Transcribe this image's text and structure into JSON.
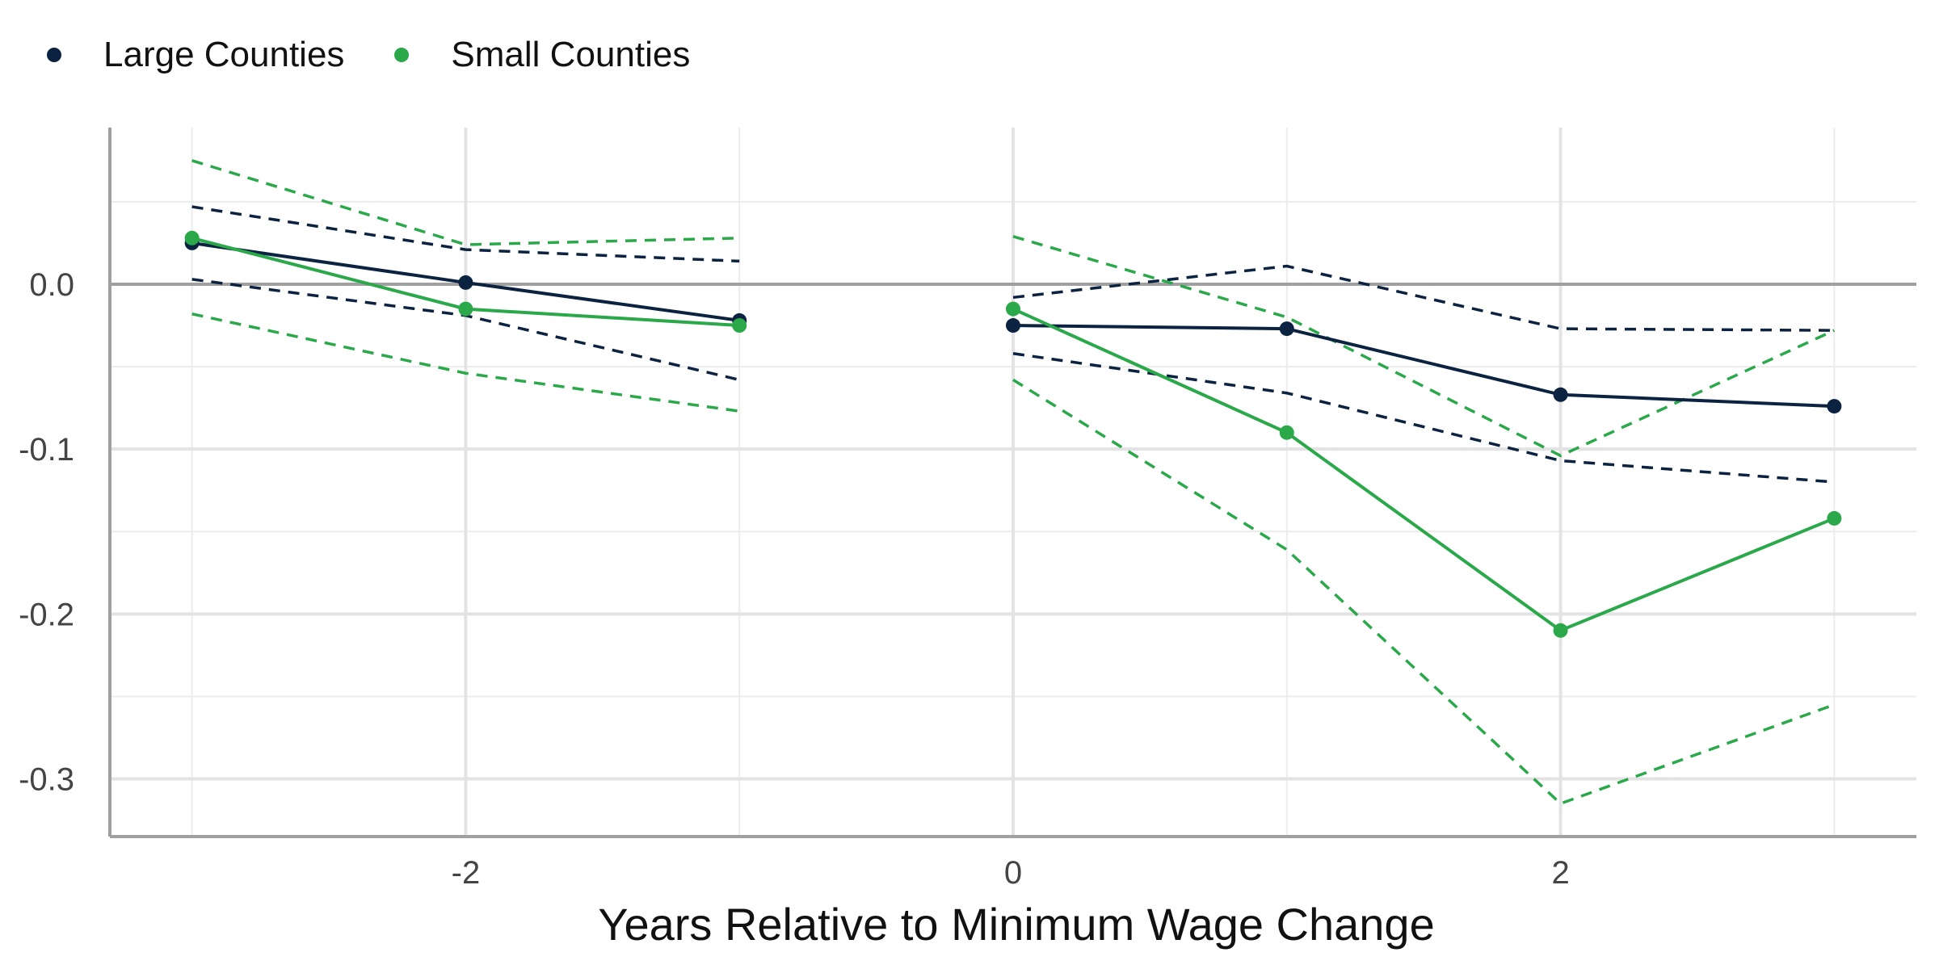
{
  "legend": {
    "items": [
      {
        "label": "Large Counties",
        "color": "#0b2240"
      },
      {
        "label": "Small Counties",
        "color": "#2aa84a"
      }
    ]
  },
  "chart_data": {
    "type": "line",
    "title": "",
    "xlabel": "Years Relative to Minimum Wage Change",
    "ylabel": "",
    "xlim": [
      -3.3,
      3.3
    ],
    "ylim": [
      -0.335,
      0.095
    ],
    "x_ticks": [
      -2,
      0,
      2
    ],
    "x_tick_labels": [
      "-2",
      "0",
      "2"
    ],
    "y_ticks": [
      0.0,
      -0.1,
      -0.2,
      -0.3
    ],
    "y_tick_labels": [
      "0.0",
      "-0.1",
      "-0.2",
      "-0.3"
    ],
    "grid": true,
    "reference_line_y": 0,
    "legend_position": "top-left",
    "series": [
      {
        "name": "Large Counties",
        "color": "#0b2240",
        "segments": [
          {
            "x": [
              -3,
              -2,
              -1
            ],
            "y": [
              0.025,
              0.001,
              -0.022
            ],
            "ci_upper": [
              0.047,
              0.021,
              0.014
            ],
            "ci_lower": [
              0.003,
              -0.019,
              -0.058
            ]
          },
          {
            "x": [
              0,
              1,
              2,
              3
            ],
            "y": [
              -0.025,
              -0.027,
              -0.067,
              -0.074
            ],
            "ci_upper": [
              -0.008,
              0.011,
              -0.027,
              -0.028
            ],
            "ci_lower": [
              -0.042,
              -0.066,
              -0.107,
              -0.12
            ]
          }
        ]
      },
      {
        "name": "Small Counties",
        "color": "#2aa84a",
        "segments": [
          {
            "x": [
              -3,
              -2,
              -1
            ],
            "y": [
              0.028,
              -0.015,
              -0.025
            ],
            "ci_upper": [
              0.075,
              0.024,
              0.028
            ],
            "ci_lower": [
              -0.018,
              -0.054,
              -0.077
            ]
          },
          {
            "x": [
              0,
              1,
              2,
              3
            ],
            "y": [
              -0.015,
              -0.09,
              -0.21,
              -0.142
            ],
            "ci_upper": [
              0.029,
              -0.02,
              -0.104,
              -0.028
            ],
            "ci_lower": [
              -0.058,
              -0.161,
              -0.315,
              -0.255
            ]
          }
        ]
      }
    ]
  }
}
